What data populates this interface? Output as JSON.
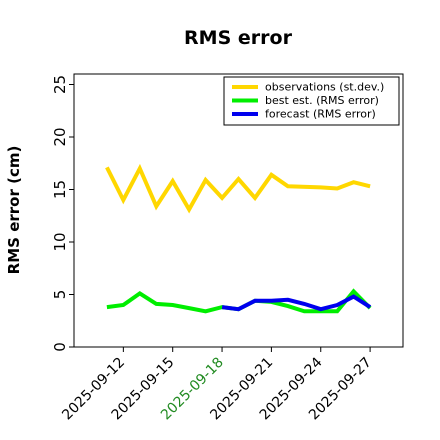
{
  "chart_data": {
    "type": "line",
    "title": "RMS error",
    "xlabel": "",
    "ylabel": "RMS error (cm)",
    "ylim": [
      0,
      26
    ],
    "yticks": [
      0,
      5,
      10,
      15,
      20,
      25
    ],
    "xlim": [
      "2025-09-09",
      "2025-09-29"
    ],
    "xticks": [
      {
        "date": "2025-09-12",
        "label": "2025-09-12",
        "color": "#000000"
      },
      {
        "date": "2025-09-15",
        "label": "2025-09-15",
        "color": "#000000"
      },
      {
        "date": "2025-09-18",
        "label": "2025-09-18",
        "color": "#228B22"
      },
      {
        "date": "2025-09-21",
        "label": "2025-09-21",
        "color": "#000000"
      },
      {
        "date": "2025-09-24",
        "label": "2025-09-24",
        "color": "#000000"
      },
      {
        "date": "2025-09-27",
        "label": "2025-09-27",
        "color": "#000000"
      }
    ],
    "grid": false,
    "legend_position": "top-right",
    "series": [
      {
        "name": "observations (st.dev.)",
        "color": "#FFD700",
        "x": [
          "2025-09-11",
          "2025-09-12",
          "2025-09-13",
          "2025-09-14",
          "2025-09-15",
          "2025-09-16",
          "2025-09-17",
          "2025-09-18",
          "2025-09-19",
          "2025-09-20",
          "2025-09-21",
          "2025-09-22",
          "2025-09-24",
          "2025-09-25",
          "2025-09-26",
          "2025-09-27"
        ],
        "y": [
          17.1,
          14.0,
          17.0,
          13.4,
          15.8,
          13.1,
          15.9,
          14.2,
          16.0,
          14.2,
          16.4,
          15.3,
          15.2,
          15.1,
          15.7,
          15.3
        ]
      },
      {
        "name": "best est. (RMS error)",
        "color": "#00EE00",
        "x": [
          "2025-09-11",
          "2025-09-12",
          "2025-09-13",
          "2025-09-14",
          "2025-09-15",
          "2025-09-16",
          "2025-09-17",
          "2025-09-18",
          "2025-09-19",
          "2025-09-20",
          "2025-09-21",
          "2025-09-22",
          "2025-09-23",
          "2025-09-24",
          "2025-09-25",
          "2025-09-26",
          "2025-09-27"
        ],
        "y": [
          3.8,
          4.0,
          5.1,
          4.1,
          4.0,
          3.7,
          3.4,
          3.8,
          3.6,
          4.4,
          4.3,
          3.9,
          3.4,
          3.4,
          3.4,
          5.3,
          3.7
        ]
      },
      {
        "name": "forecast (RMS error)",
        "color": "#0000EE",
        "x": [
          "2025-09-18",
          "2025-09-19",
          "2025-09-20",
          "2025-09-21",
          "2025-09-22",
          "2025-09-23",
          "2025-09-24",
          "2025-09-25",
          "2025-09-26",
          "2025-09-27"
        ],
        "y": [
          3.8,
          3.6,
          4.4,
          4.4,
          4.5,
          4.1,
          3.6,
          4.0,
          4.8,
          3.8
        ]
      }
    ]
  }
}
